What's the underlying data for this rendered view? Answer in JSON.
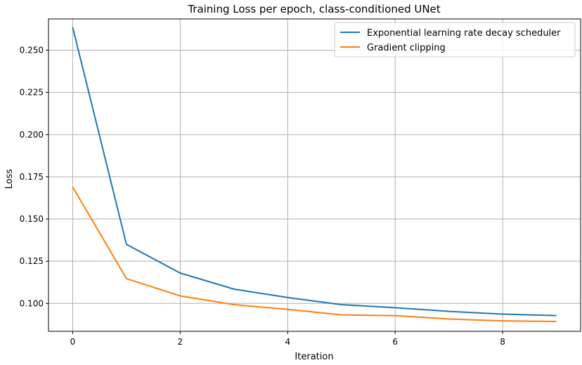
{
  "chart_data": {
    "type": "line",
    "title": "Training Loss per epoch, class-conditioned UNet",
    "xlabel": "Iteration",
    "ylabel": "Loss",
    "xlim": [
      -0.45,
      9.45
    ],
    "ylim": [
      0.0835,
      0.2685
    ],
    "xticks": [
      0,
      2,
      4,
      6,
      8
    ],
    "yticks": [
      0.1,
      0.125,
      0.15,
      0.175,
      0.2,
      0.225,
      0.25
    ],
    "xtick_labels": [
      "0",
      "2",
      "4",
      "6",
      "8"
    ],
    "ytick_labels": [
      "0.100",
      "0.125",
      "0.150",
      "0.175",
      "0.200",
      "0.225",
      "0.250"
    ],
    "grid": true,
    "legend_position": "top-right",
    "x": [
      0,
      1,
      2,
      3,
      4,
      5,
      6,
      7,
      8,
      9
    ],
    "series": [
      {
        "name": "Exponential learning rate decay scheduler",
        "color": "#1f77b4",
        "values": [
          0.2635,
          0.135,
          0.118,
          0.1085,
          0.1035,
          0.0993,
          0.0975,
          0.0953,
          0.0937,
          0.0928
        ]
      },
      {
        "name": "Gradient clipping",
        "color": "#ff7f0e",
        "values": [
          0.169,
          0.1147,
          0.1045,
          0.0993,
          0.0965,
          0.0932,
          0.0928,
          0.0908,
          0.0897,
          0.0893
        ]
      }
    ]
  }
}
